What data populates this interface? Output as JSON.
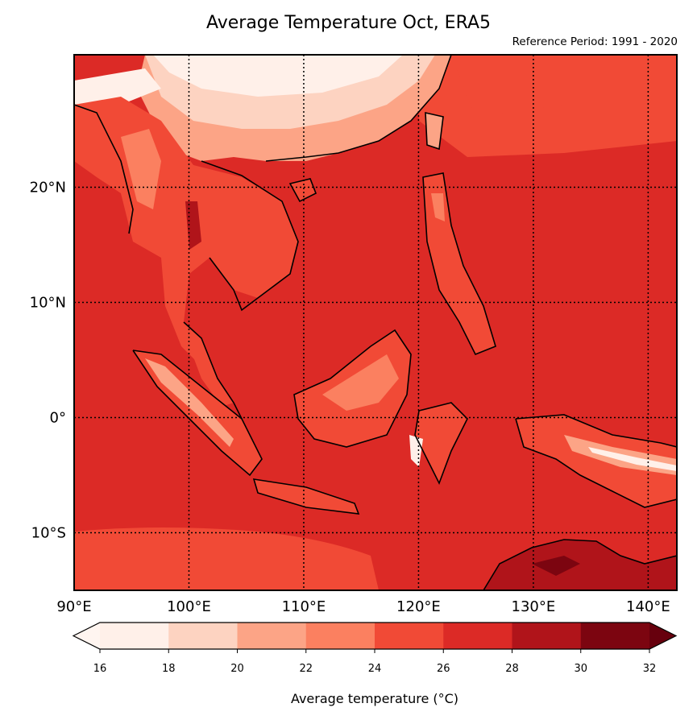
{
  "title": "Average Temperature Oct, ERA5",
  "subtitle": "Reference Period: 1991 - 2020",
  "map": {
    "lon_ticks": [
      "90°E",
      "100°E",
      "110°E",
      "120°E",
      "130°E",
      "140°E"
    ],
    "lon_values": [
      90,
      100,
      110,
      120,
      130,
      140
    ],
    "lat_ticks": [
      "20°N",
      "10°N",
      "0°",
      "10°S"
    ],
    "lat_values": [
      20,
      10,
      0,
      -10
    ],
    "lon_range": [
      90,
      142.5
    ],
    "lat_range": [
      -15,
      31.5
    ],
    "gridlines": "dotted"
  },
  "colorbar": {
    "label": "Average temperature (°C)",
    "ticks": [
      "16",
      "18",
      "20",
      "22",
      "24",
      "26",
      "28",
      "30",
      "32"
    ],
    "tick_values": [
      16,
      18,
      20,
      22,
      24,
      26,
      28,
      30,
      32
    ],
    "colors": [
      "#fff0e9",
      "#fdd3c1",
      "#fca486",
      "#fb8060",
      "#f14a36",
      "#dc2a26",
      "#b0141a",
      "#7c0510"
    ],
    "extend": "both",
    "under_color": "#fff5f0",
    "over_color": "#67000d"
  }
}
